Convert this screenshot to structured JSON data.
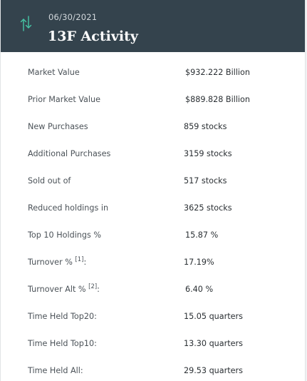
{
  "header": {
    "date": "06/30/2021",
    "title": "13F Activity",
    "icon": "up-down-arrows-icon",
    "icon_color": "#45c6a6",
    "background": "#34434d"
  },
  "rows": [
    {
      "label": "Market Value",
      "sup": "",
      "suffix": "",
      "value": "$932.222 Billion"
    },
    {
      "label": "Prior Market Value",
      "sup": "",
      "suffix": "",
      "value": "$889.828 Billion"
    },
    {
      "label": "New Purchases",
      "sup": "",
      "suffix": "",
      "value": "859 stocks"
    },
    {
      "label": "Additional Purchases",
      "sup": "",
      "suffix": "",
      "value": "3159 stocks"
    },
    {
      "label": "Sold out of",
      "sup": "",
      "suffix": "",
      "value": "517 stocks"
    },
    {
      "label": "Reduced holdings in",
      "sup": "",
      "suffix": "",
      "value": "3625 stocks"
    },
    {
      "label": "Top 10 Holdings %",
      "sup": "",
      "suffix": "",
      "value": "15.87 %"
    },
    {
      "label": "Turnover % ",
      "sup": "[1]",
      "suffix": ":",
      "value": "17.19%"
    },
    {
      "label": "Turnover Alt % ",
      "sup": "[2]",
      "suffix": ":",
      "value": "6.40 %"
    },
    {
      "label": "Time Held Top20:",
      "sup": "",
      "suffix": "",
      "value": "15.05 quarters"
    },
    {
      "label": "Time Held Top10:",
      "sup": "",
      "suffix": "",
      "value": "13.30 quarters"
    },
    {
      "label": "Time Held All:",
      "sup": "",
      "suffix": "",
      "value": "29.53 quarters"
    }
  ]
}
